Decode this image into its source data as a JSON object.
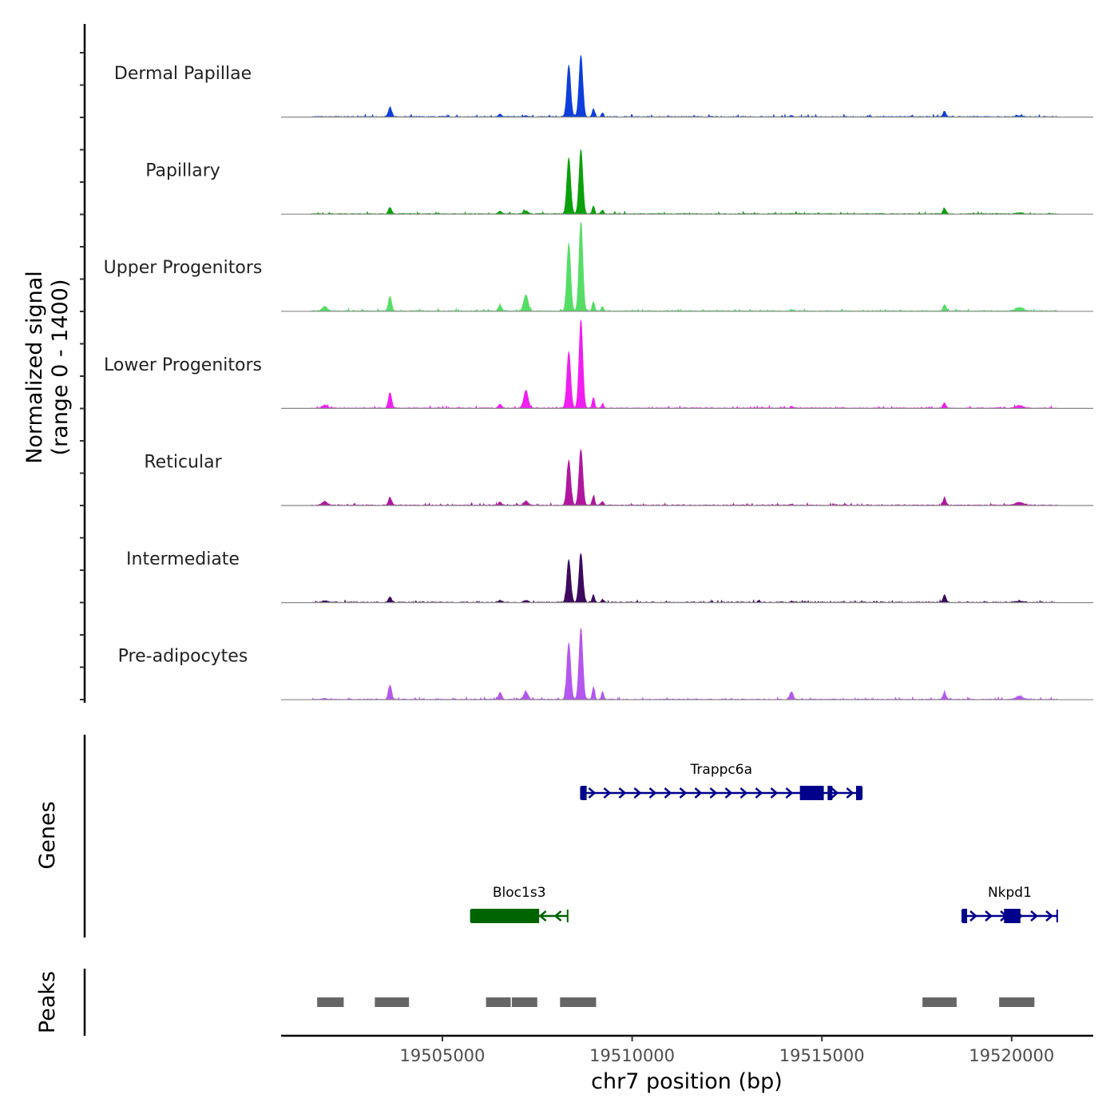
{
  "chart_data": {
    "type": "area",
    "title": "",
    "xlabel": "chr7 position (bp)",
    "coverage_ylabel": [
      "Normalized signal",
      "(range 0 - 1400)"
    ],
    "ylim": [
      0,
      1400
    ],
    "xlim": [
      19500750,
      19522150
    ],
    "x_ticks": [
      {
        "value": 19505000,
        "label": "19505000"
      },
      {
        "value": 19510000,
        "label": "19510000"
      },
      {
        "value": 19515000,
        "label": "19515000"
      },
      {
        "value": 19520000,
        "label": "19520000"
      }
    ],
    "peak_shape_positions": [
      19501900,
      19503620,
      19506520,
      19507200,
      19508330,
      19508650,
      19508980,
      19509220,
      19514200,
      19518230,
      19520200
    ],
    "series": [
      {
        "name": "Dermal Papillae",
        "color": "#0E3FDC",
        "values": [
          0,
          200,
          60,
          20,
          1050,
          1250,
          170,
          80,
          20,
          110,
          20
        ]
      },
      {
        "name": "Papillary",
        "color": "#0AA00A",
        "values": [
          0,
          130,
          50,
          60,
          1140,
          1300,
          160,
          80,
          10,
          110,
          20
        ]
      },
      {
        "name": "Upper Progenitors",
        "color": "#55DD66",
        "values": [
          90,
          300,
          120,
          330,
          1380,
          1820,
          190,
          90,
          30,
          120,
          70
        ]
      },
      {
        "name": "Lower Progenitors",
        "color": "#F01EF0",
        "values": [
          60,
          320,
          80,
          360,
          1150,
          1800,
          220,
          90,
          30,
          100,
          50
        ]
      },
      {
        "name": "Reticular",
        "color": "#B0179E",
        "values": [
          80,
          150,
          60,
          80,
          910,
          1130,
          190,
          80,
          20,
          150,
          60
        ]
      },
      {
        "name": "Intermediate",
        "color": "#3D0A5E",
        "values": [
          30,
          100,
          40,
          40,
          870,
          1000,
          150,
          60,
          20,
          150,
          20
        ]
      },
      {
        "name": "Pre-adipocytes",
        "color": "#B457EE",
        "values": [
          20,
          290,
          140,
          160,
          1150,
          1450,
          250,
          160,
          160,
          140,
          60
        ]
      }
    ],
    "genes": [
      {
        "name": "Trappc6a",
        "strand": "+",
        "color": "#00008B",
        "start": 19508650,
        "end": 19516050,
        "row": 1,
        "exons": [
          [
            19508650,
            19508800
          ],
          [
            19514420,
            19515050
          ],
          [
            19515150,
            19515250
          ],
          [
            19515900,
            19516050
          ]
        ]
      },
      {
        "name": "Bloc1s3",
        "strand": "-",
        "color": "#006400",
        "start": 19505750,
        "end": 19508300,
        "row": 2,
        "exons": [
          [
            19505750,
            19507550
          ]
        ]
      },
      {
        "name": "Nkpd1",
        "strand": "+",
        "color": "#00008B",
        "start": 19518700,
        "end": 19521200,
        "row": 2,
        "exons": [
          [
            19518700,
            19518780
          ],
          [
            19519800,
            19520230
          ]
        ]
      }
    ],
    "genes_ylabel": "Genes",
    "peaks_ylabel": "Peaks",
    "peaks_color": "#666666",
    "peaks": [
      [
        19501700,
        19502400
      ],
      [
        19503220,
        19504120
      ],
      [
        19506150,
        19506800
      ],
      [
        19506830,
        19507500
      ],
      [
        19508100,
        19509050
      ],
      [
        19517650,
        19518550
      ],
      [
        19519670,
        19520600
      ]
    ]
  }
}
